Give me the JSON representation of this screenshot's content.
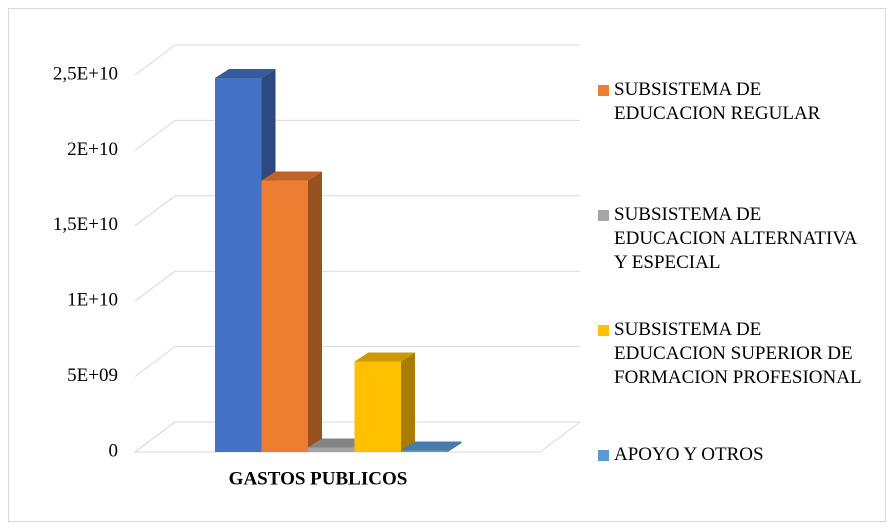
{
  "chart_data": {
    "type": "bar3d",
    "categories": [
      "GASTOS PUBLICOS"
    ],
    "series": [
      {
        "name": null,
        "color": "#4472c4",
        "values": [
          24800000000
        ]
      },
      {
        "name": "SUBSISTEMA DE EDUCACION REGULAR",
        "color": "#ed7d31",
        "values": [
          18000000000
        ]
      },
      {
        "name": "SUBSISTEMA DE EDUCACION ALTERNATIVA Y ESPECIAL",
        "color": "#a5a5a5",
        "values": [
          300000000
        ]
      },
      {
        "name": "SUBSISTEMA DE EDUCACION SUPERIOR DE FORMACION PROFESIONAL",
        "color": "#ffc000",
        "values": [
          6000000000
        ]
      },
      {
        "name": "APOYO Y OTROS",
        "color": "#5b9bd5",
        "values": [
          100000000
        ]
      }
    ],
    "ylim": [
      0,
      25000000000
    ],
    "yticks": [
      0,
      {
        "value": 5000000000,
        "label": "5E+09"
      },
      {
        "value": 10000000000,
        "label": "1E+10"
      },
      {
        "value": 15000000000,
        "label": "1,5E+10"
      },
      {
        "value": 20000000000,
        "label": "2E+10"
      },
      {
        "value": 25000000000,
        "label": "2,5E+10"
      }
    ],
    "grid": true,
    "legend": "right"
  }
}
